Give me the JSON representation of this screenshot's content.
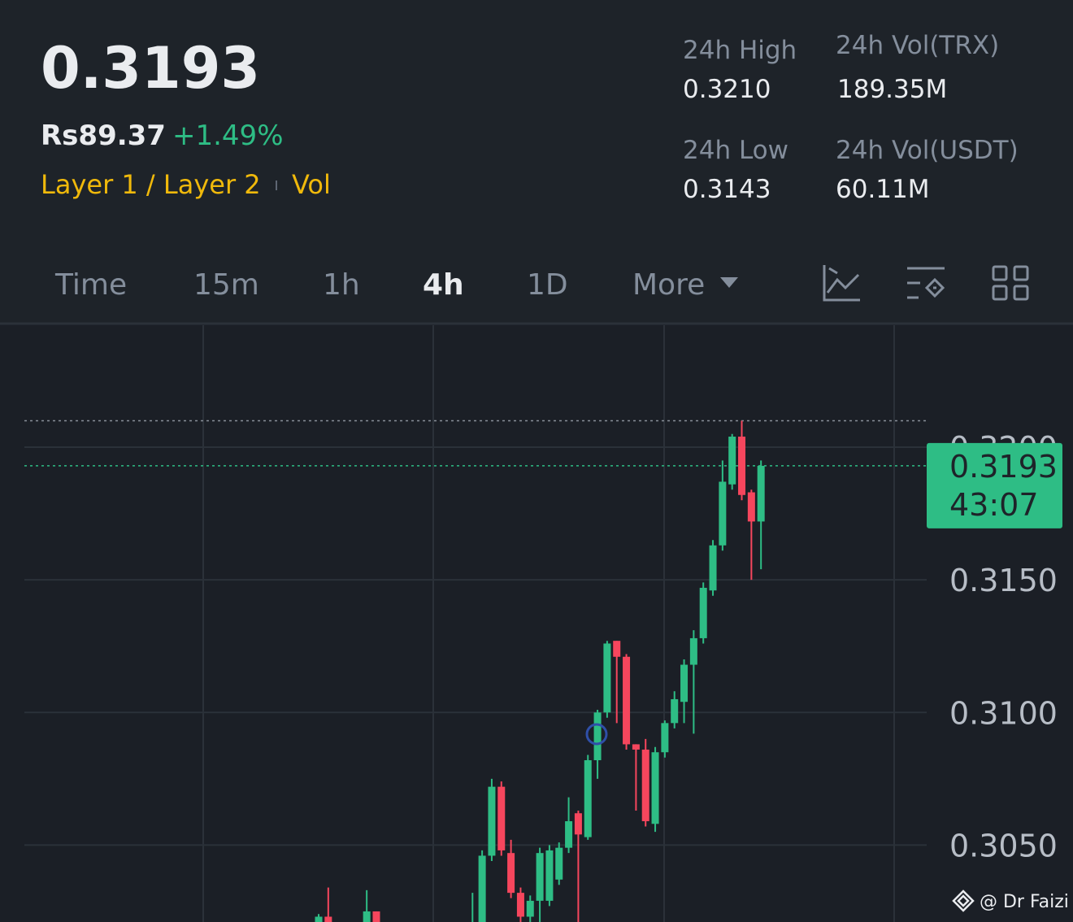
{
  "header": {
    "price": "0.3193",
    "fiat_price": "Rs89.37",
    "change": "+1.49%",
    "tag": "Layer 1 / Layer 2",
    "tag2": "Vol"
  },
  "stats": [
    {
      "label": "24h High",
      "value": "0.3210"
    },
    {
      "label": "24h Vol(TRX)",
      "value": "189.35M"
    },
    {
      "label": "24h Low",
      "value": "0.3143"
    },
    {
      "label": "24h Vol(USDT)",
      "value": "60.11M"
    }
  ],
  "tabs": [
    "Time",
    "15m",
    "1h",
    "4h",
    "1D",
    "More"
  ],
  "active_tab": 3,
  "watermark": "@ Dr Faizi",
  "chart_data": {
    "type": "candlestick",
    "up_color": "#2ebd85",
    "down_color": "#f6465d",
    "open": [
      0.302,
      0.3023,
      null,
      null,
      null,
      0.3019,
      0.3025,
      null,
      null,
      null,
      null,
      null,
      null,
      null,
      null,
      null,
      0.3016,
      0.3018,
      0.3046,
      0.3072,
      0.3047,
      0.3032,
      0.3023,
      0.3029,
      0.3029,
      0.3037,
      0.3049,
      0.3062,
      0.3053,
      0.3082,
      0.31,
      0.3127,
      0.3121,
      0.3088,
      0.3086,
      0.3058,
      0.3085,
      0.3096,
      0.3104,
      0.3118,
      0.3128,
      0.3146,
      0.3163,
      0.3186,
      0.3204,
      0.3183,
      0.3172
    ],
    "high": [
      0.3024,
      0.3034,
      null,
      null,
      null,
      0.3033,
      0.3025,
      null,
      null,
      null,
      null,
      null,
      null,
      null,
      null,
      null,
      0.3032,
      0.3048,
      0.3075,
      0.3074,
      0.3052,
      0.3034,
      0.3031,
      0.3049,
      0.305,
      0.3051,
      0.3068,
      0.3063,
      0.3084,
      0.3101,
      0.3127,
      0.3127,
      0.3122,
      0.3088,
      0.309,
      0.3087,
      0.3097,
      0.3108,
      0.312,
      0.3131,
      0.3149,
      0.3165,
      0.3195,
      0.3205,
      0.321,
      0.3184,
      0.3195
    ],
    "low": [
      0.3018,
      0.3017,
      null,
      null,
      null,
      0.3017,
      0.3018,
      null,
      null,
      null,
      null,
      null,
      null,
      null,
      null,
      null,
      0.3014,
      0.3015,
      0.3044,
      0.3046,
      0.303,
      0.3021,
      0.3018,
      0.302,
      0.3027,
      0.3035,
      0.3047,
      0.302,
      0.3052,
      0.3075,
      0.3098,
      0.3096,
      0.3086,
      0.3063,
      0.3057,
      0.3055,
      0.3083,
      0.3094,
      0.3096,
      0.3092,
      0.3126,
      0.3144,
      0.3161,
      0.3184,
      0.318,
      0.315,
      0.3154
    ],
    "close": [
      0.3023,
      0.3019,
      null,
      null,
      null,
      0.3025,
      0.302,
      null,
      null,
      null,
      null,
      null,
      null,
      null,
      null,
      null,
      0.302,
      0.3046,
      0.3072,
      0.3048,
      0.3032,
      0.3023,
      0.3029,
      0.3047,
      0.3048,
      0.3049,
      0.3059,
      0.3054,
      0.3082,
      0.31,
      0.3126,
      0.3121,
      0.3088,
      0.3086,
      0.3059,
      0.3085,
      0.3096,
      0.3105,
      0.3118,
      0.3128,
      0.3147,
      0.3163,
      0.3187,
      0.3204,
      0.3182,
      0.3172,
      0.3193
    ],
    "ylim": [
      0.3021,
      0.3246
    ],
    "yticks": [
      {
        "value": 0.305,
        "label": "0.3050"
      },
      {
        "value": 0.31,
        "label": "0.3100"
      },
      {
        "value": 0.315,
        "label": "0.3150"
      },
      {
        "value": 0.32,
        "label": "0.3200"
      }
    ],
    "high_line": 0.321,
    "last_price": {
      "value": 0.3193,
      "label": "0.3193"
    },
    "countdown": "43:07"
  }
}
